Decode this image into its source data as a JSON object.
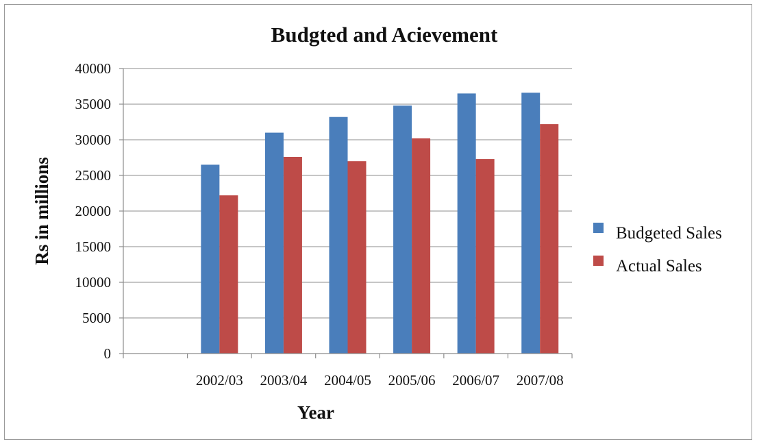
{
  "chart_data": {
    "type": "bar",
    "title": "Budgted and Acievement",
    "xlabel": "Year",
    "ylabel": "Rs in millions",
    "categories": [
      "",
      "2002/03",
      "2003/04",
      "2004/05",
      "2005/06",
      "2006/07",
      "2007/08"
    ],
    "series": [
      {
        "name": "Budgeted Sales",
        "color": "#4a7ebb",
        "values": [
          null,
          26500,
          31000,
          33200,
          34800,
          36500,
          36600
        ]
      },
      {
        "name": "Actual Sales",
        "color": "#be4b48",
        "values": [
          null,
          22200,
          27600,
          27000,
          30200,
          27300,
          32200
        ]
      }
    ],
    "ylim": [
      0,
      40000
    ],
    "yticks": [
      0,
      5000,
      10000,
      15000,
      20000,
      25000,
      30000,
      35000,
      40000
    ],
    "grid": true,
    "legend_position": "right"
  }
}
